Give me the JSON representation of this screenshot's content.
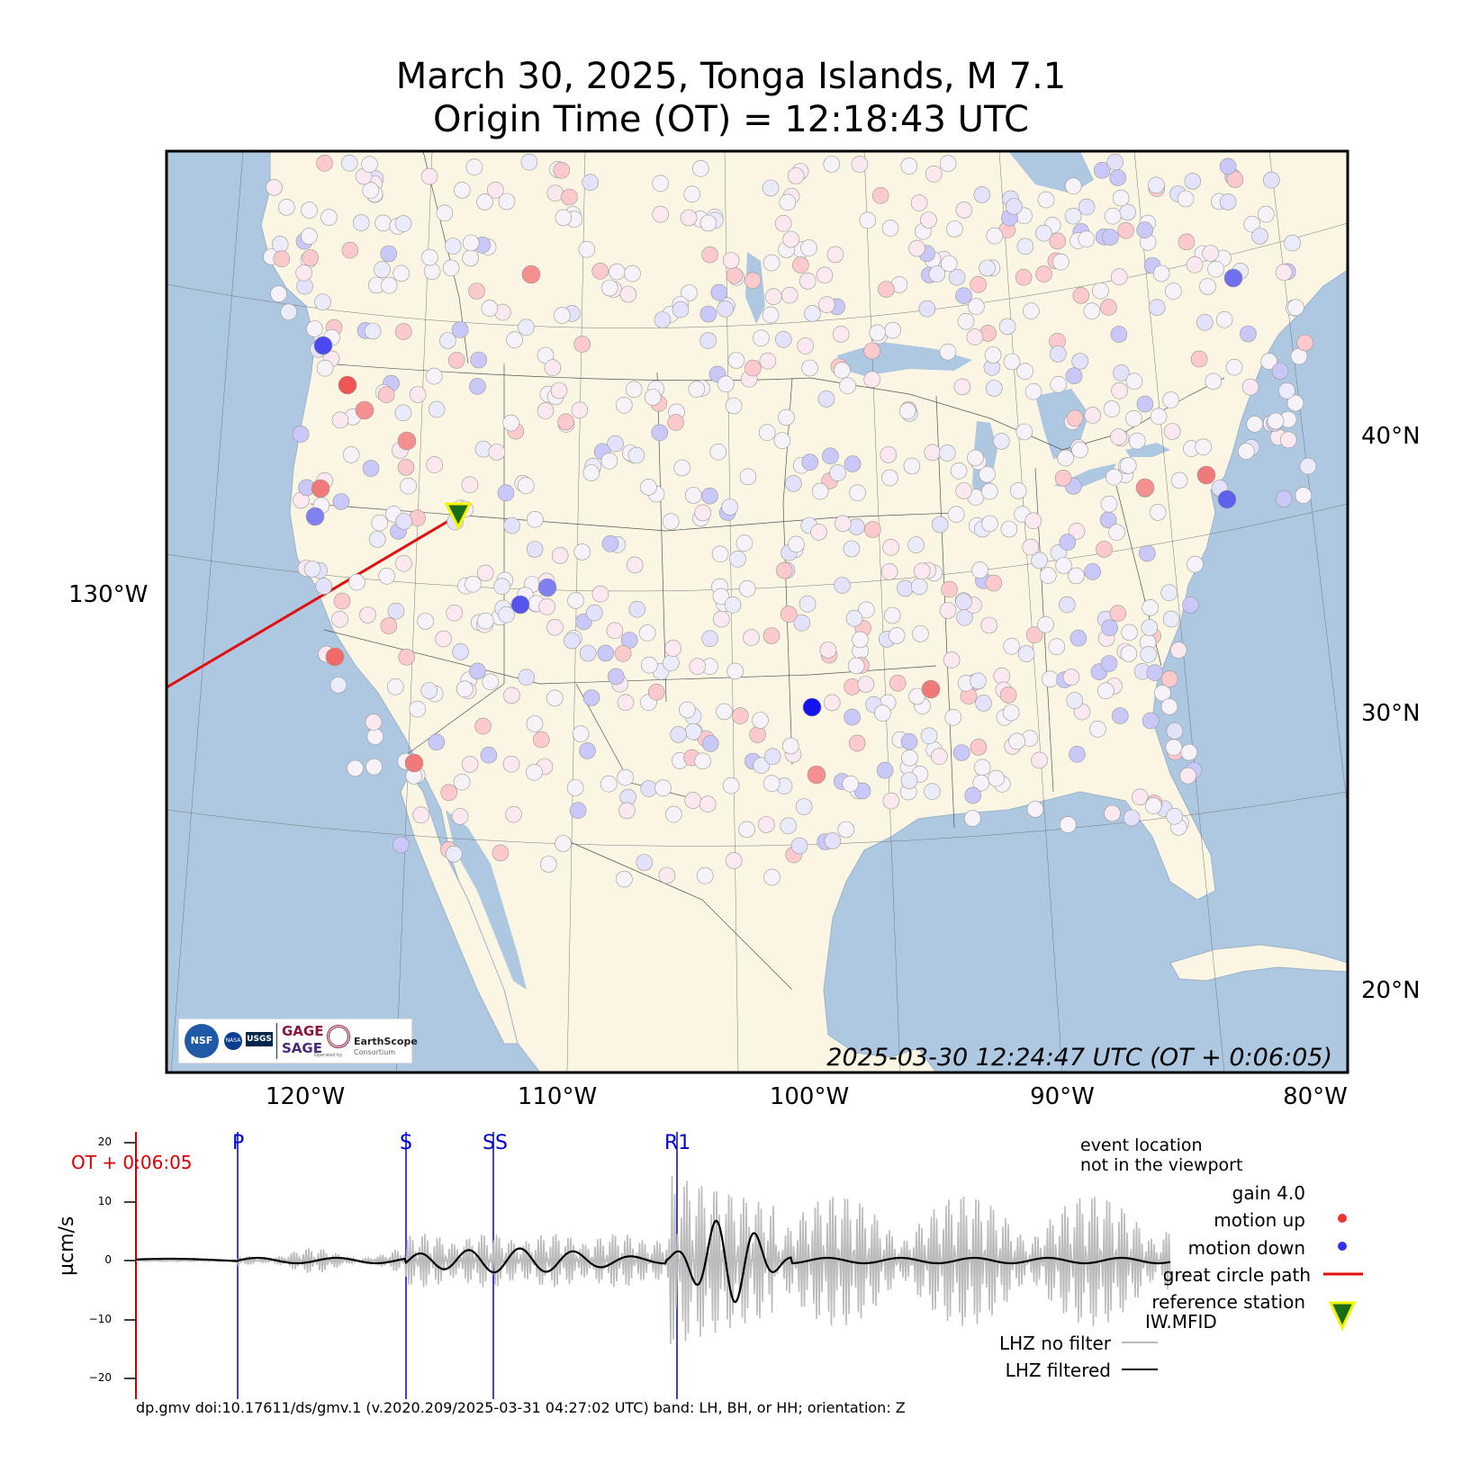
{
  "title": {
    "line1": "March 30, 2025, Tonga Islands, M 7.1",
    "line2": "Origin Time (OT) = 12:18:43 UTC"
  },
  "map": {
    "lat_labels": [
      "40°N",
      "30°N",
      "20°N"
    ],
    "lon_labels": [
      "120°W",
      "110°W",
      "100°W",
      "90°W",
      "80°W"
    ],
    "left_lon_label": "130°W",
    "frame_time": "2025-03-30 12:24:47 UTC (OT + 0:06:05)",
    "colors": {
      "land": "#fbf6e4",
      "water": "#aec8e2",
      "up": "#ff3333",
      "down": "#2222ff",
      "neutral": "#f6f2f8",
      "path": "#e01010",
      "ref_station": "#1a6b1a",
      "ref_outline": "#f5f500"
    },
    "reference_station": "IW.MFID",
    "logos": {
      "nsf": "NSF",
      "nasa": "NASA",
      "usgs": "USGS",
      "gage": "GAGE",
      "sage": "SAGE",
      "earthscope": "EarthScope",
      "earthscope_sub": "Consortium",
      "operated_by": "Operated by"
    }
  },
  "waveform": {
    "ylabel": "µcm/s",
    "yticks": [
      "20",
      "10",
      "0",
      "−10",
      "−20"
    ],
    "ot_label": "OT + 0:06:05",
    "phases": [
      "P",
      "S",
      "SS",
      "R1"
    ],
    "legend": {
      "event_location": "event location",
      "not_in_viewport": "not in the viewport",
      "gain": "gain  4.0",
      "motion_up": "motion up",
      "motion_down": "motion down",
      "great_circle": "great circle path",
      "reference_station": "reference station",
      "station_code": "IW.MFID",
      "no_filter": "LHZ no filter",
      "filtered": "LHZ filtered"
    }
  },
  "footer": "dp.gmv doi:10.17611/ds/gmv.1 (v.2020.209/2025-03-31 04:27:02 UTC) band: LH, BH, or HH; orientation: Z"
}
